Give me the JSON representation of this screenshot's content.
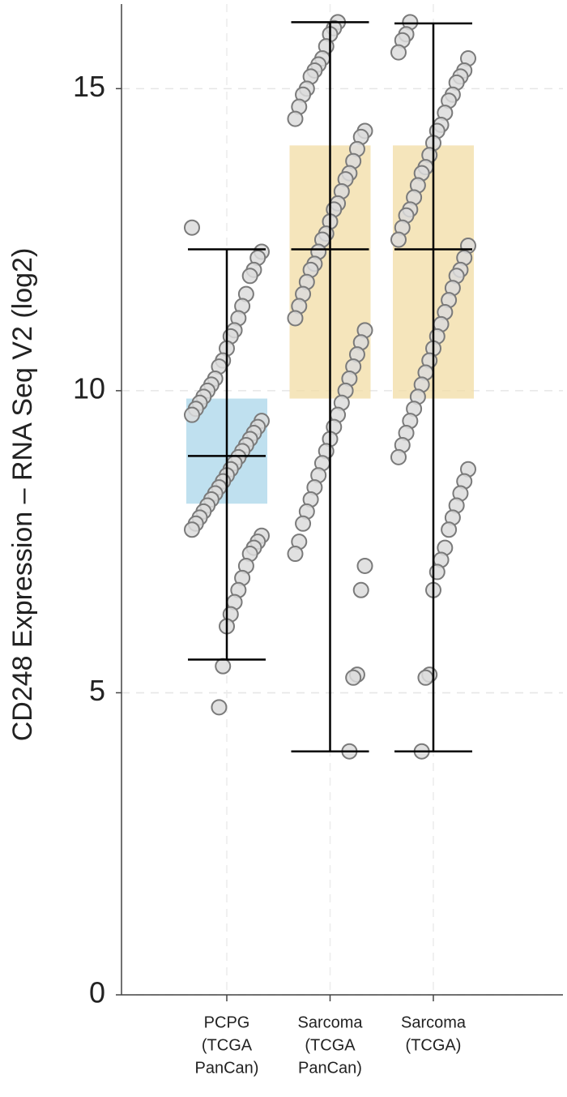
{
  "chart_data": {
    "type": "box",
    "y_label": "CD248 Expression – RNA Seq V2 (log2)",
    "categories": [
      [
        "PCPG",
        "(TCGA",
        "PanCan)"
      ],
      [
        "Sarcoma",
        "(TCGA",
        "PanCan)"
      ],
      [
        "Sarcoma",
        "(TCGA)"
      ]
    ],
    "ylim": [
      0,
      16.4
    ],
    "yticks": [
      0,
      5,
      10,
      15
    ],
    "grid": true,
    "boxes": [
      {
        "color": "#a9d6ea",
        "whisker_low": 5.55,
        "q1": 8.13,
        "median": 8.92,
        "q3": 9.87,
        "whisker_high": 12.34,
        "points": [
          12.7,
          12.3,
          12.2,
          12.0,
          11.9,
          11.6,
          11.4,
          11.2,
          11.0,
          10.9,
          10.7,
          10.5,
          10.4,
          10.2,
          10.1,
          10.0,
          9.9,
          9.8,
          9.7,
          9.6,
          9.5,
          9.4,
          9.3,
          9.2,
          9.1,
          9.0,
          8.9,
          8.8,
          8.7,
          8.6,
          8.5,
          8.4,
          8.3,
          8.2,
          8.1,
          8.0,
          7.9,
          7.8,
          7.7,
          7.6,
          7.5,
          7.4,
          7.3,
          7.1,
          6.9,
          6.7,
          6.5,
          6.3,
          6.1,
          5.44,
          4.76
        ]
      },
      {
        "color": "#f2dca4",
        "whisker_low": 4.03,
        "q1": 9.87,
        "median": 12.34,
        "q3": 14.06,
        "whisker_high": 16.1,
        "points": [
          16.1,
          16.0,
          15.9,
          15.7,
          15.5,
          15.4,
          15.3,
          15.2,
          15.0,
          14.9,
          14.7,
          14.5,
          14.3,
          14.2,
          14.0,
          13.8,
          13.6,
          13.5,
          13.3,
          13.1,
          13.0,
          12.8,
          12.6,
          12.5,
          12.3,
          12.1,
          12.0,
          11.8,
          11.6,
          11.4,
          11.2,
          11.0,
          10.8,
          10.6,
          10.4,
          10.2,
          10.0,
          9.8,
          9.6,
          9.4,
          9.2,
          9.0,
          8.8,
          8.6,
          8.4,
          8.2,
          8.0,
          7.8,
          7.5,
          7.3,
          7.1,
          6.7,
          5.3,
          5.25,
          4.03
        ]
      },
      {
        "color": "#f2dca4",
        "whisker_low": 4.03,
        "q1": 9.87,
        "median": 12.34,
        "q3": 14.06,
        "whisker_high": 16.08,
        "points": [
          16.1,
          15.9,
          15.8,
          15.6,
          15.5,
          15.3,
          15.2,
          15.1,
          14.9,
          14.8,
          14.6,
          14.4,
          14.3,
          14.1,
          13.9,
          13.7,
          13.6,
          13.4,
          13.2,
          13.0,
          12.9,
          12.7,
          12.5,
          12.4,
          12.2,
          12.0,
          11.9,
          11.7,
          11.5,
          11.3,
          11.1,
          10.9,
          10.7,
          10.5,
          10.3,
          10.1,
          9.9,
          9.7,
          9.5,
          9.3,
          9.1,
          8.9,
          8.7,
          8.5,
          8.3,
          8.1,
          7.9,
          7.7,
          7.4,
          7.2,
          7.0,
          6.7,
          5.3,
          5.25,
          4.03
        ]
      }
    ]
  }
}
